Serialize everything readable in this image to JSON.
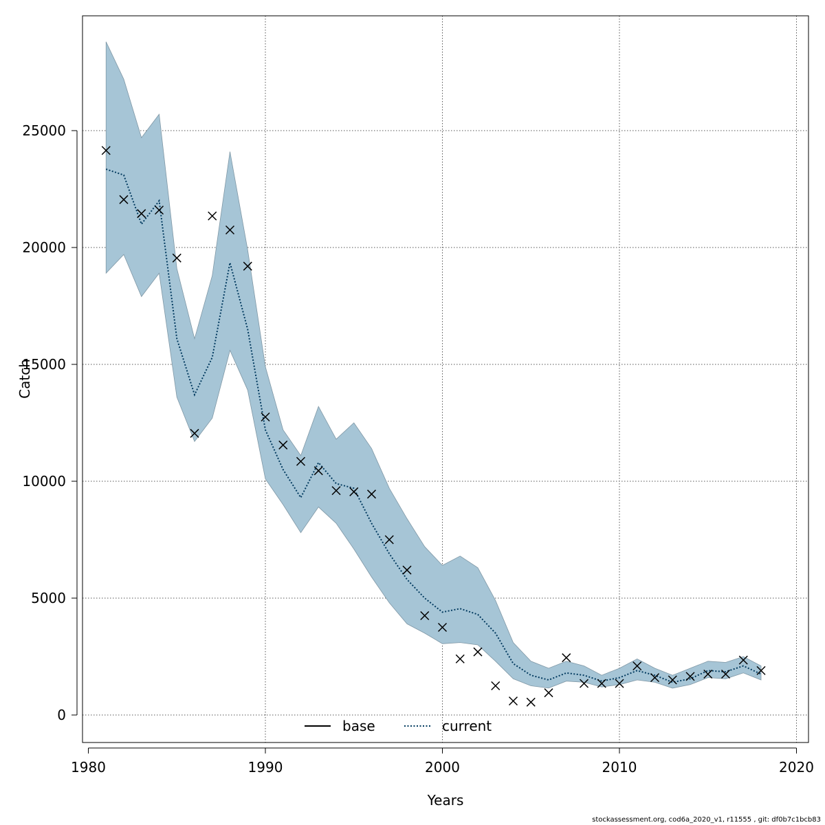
{
  "chart_data": {
    "type": "line",
    "title": "",
    "xlabel": "Years",
    "ylabel": "Catch",
    "xlim": [
      1980,
      2020
    ],
    "ylim": [
      0,
      28000
    ],
    "x_ticks": [
      1980,
      1990,
      2000,
      2010,
      2020
    ],
    "y_ticks": [
      0,
      5000,
      10000,
      15000,
      20000,
      25000
    ],
    "grid": true,
    "legend": {
      "placement": "bottom-center",
      "entries": [
        "base",
        "current"
      ]
    },
    "colors": {
      "band": "#a6c5d6",
      "band_edge": "#7f97a5",
      "current_line": "#00395e",
      "base_line": "#000000",
      "observed": "#000000"
    },
    "years": [
      1981,
      1982,
      1983,
      1984,
      1985,
      1986,
      1987,
      1988,
      1989,
      1990,
      1991,
      1992,
      1993,
      1994,
      1995,
      1996,
      1997,
      1998,
      1999,
      2000,
      2001,
      2002,
      2003,
      2004,
      2005,
      2006,
      2007,
      2008,
      2009,
      2010,
      2011,
      2012,
      2013,
      2014,
      2015,
      2016,
      2017,
      2018
    ],
    "series": [
      {
        "name": "current",
        "style": "dotted",
        "values": [
          23350,
          23100,
          21000,
          22000,
          16100,
          13700,
          15300,
          19350,
          16500,
          12200,
          10500,
          9300,
          10800,
          9900,
          9700,
          8200,
          6900,
          5800,
          5000,
          4400,
          4550,
          4300,
          3500,
          2200,
          1700,
          1500,
          1800,
          1700,
          1450,
          1600,
          1900,
          1700,
          1400,
          1550,
          1900,
          1850,
          2100,
          1750
        ]
      },
      {
        "name": "base",
        "style": "solid",
        "values": []
      }
    ],
    "band": {
      "upper": [
        28800,
        27200,
        24700,
        25700,
        19100,
        16100,
        18800,
        24100,
        19900,
        14900,
        12200,
        11100,
        13200,
        11800,
        12500,
        11400,
        9700,
        8400,
        7200,
        6400,
        6800,
        6300,
        4900,
        3100,
        2300,
        2000,
        2300,
        2100,
        1700,
        2000,
        2400,
        2000,
        1700,
        2000,
        2300,
        2250,
        2500,
        2100
      ],
      "lower": [
        18900,
        19700,
        17900,
        18900,
        13600,
        11700,
        12700,
        15600,
        13900,
        10100,
        9000,
        7800,
        8900,
        8200,
        7100,
        5900,
        4800,
        3900,
        3500,
        3050,
        3100,
        3000,
        2300,
        1550,
        1250,
        1150,
        1450,
        1400,
        1200,
        1300,
        1500,
        1400,
        1150,
        1300,
        1600,
        1550,
        1800,
        1500
      ]
    },
    "observed": {
      "marker": "x",
      "values": [
        24150,
        22050,
        21450,
        21600,
        19550,
        12050,
        21350,
        20750,
        19200,
        12750,
        11550,
        10850,
        10450,
        9600,
        9550,
        9450,
        7500,
        6200,
        4250,
        3750,
        2400,
        2700,
        1250,
        600,
        550,
        950,
        2450,
        1350,
        1350,
        1350,
        2100,
        1600,
        1500,
        1650,
        1750,
        1750,
        2350,
        1900
      ]
    }
  },
  "footer": "stockassessment.org, cod6a_2020_v1, r11555 , git: df0b7c1bcb83"
}
